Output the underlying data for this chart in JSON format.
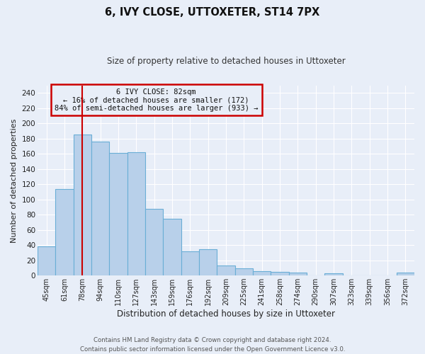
{
  "title": "6, IVY CLOSE, UTTOXETER, ST14 7PX",
  "subtitle": "Size of property relative to detached houses in Uttoxeter",
  "xlabel": "Distribution of detached houses by size in Uttoxeter",
  "ylabel": "Number of detached properties",
  "bar_labels": [
    "45sqm",
    "61sqm",
    "78sqm",
    "94sqm",
    "110sqm",
    "127sqm",
    "143sqm",
    "159sqm",
    "176sqm",
    "192sqm",
    "209sqm",
    "225sqm",
    "241sqm",
    "258sqm",
    "274sqm",
    "290sqm",
    "307sqm",
    "323sqm",
    "339sqm",
    "356sqm",
    "372sqm"
  ],
  "bar_values": [
    38,
    114,
    185,
    176,
    161,
    162,
    88,
    75,
    32,
    35,
    13,
    9,
    6,
    5,
    4,
    0,
    3,
    0,
    0,
    0,
    4
  ],
  "bar_color": "#b8d0ea",
  "bar_edge_color": "#6aaed6",
  "vline_x": 2,
  "vline_color": "#cc0000",
  "ylim": [
    0,
    250
  ],
  "yticks": [
    0,
    20,
    40,
    60,
    80,
    100,
    120,
    140,
    160,
    180,
    200,
    220,
    240
  ],
  "annotation_title": "6 IVY CLOSE: 82sqm",
  "annotation_line1": "← 16% of detached houses are smaller (172)",
  "annotation_line2": "84% of semi-detached houses are larger (933) →",
  "annotation_box_color": "#cc0000",
  "footer_line1": "Contains HM Land Registry data © Crown copyright and database right 2024.",
  "footer_line2": "Contains public sector information licensed under the Open Government Licence v3.0.",
  "background_color": "#e8eef8",
  "grid_color": "#ffffff"
}
